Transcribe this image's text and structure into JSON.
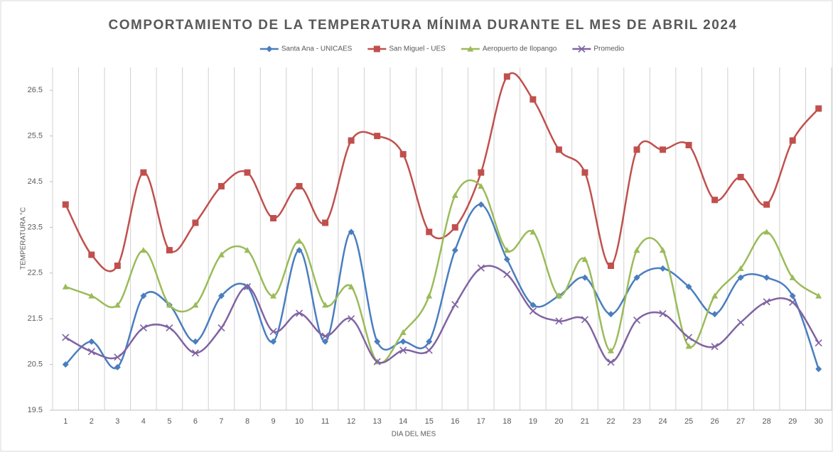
{
  "chart_data": {
    "type": "line",
    "title": "COMPORTAMIENTO DE LA TEMPERATURA MÍNIMA DURANTE EL MES DE ABRIL 2024",
    "xlabel": "DIA DEL MES",
    "ylabel": "TEMPERATURA °C",
    "categories": [
      "1",
      "2",
      "3",
      "4",
      "5",
      "6",
      "7",
      "8",
      "9",
      "10",
      "11",
      "12",
      "13",
      "14",
      "15",
      "16",
      "17",
      "18",
      "19",
      "20",
      "21",
      "22",
      "23",
      "24",
      "25",
      "26",
      "27",
      "28",
      "29",
      "30"
    ],
    "series": [
      {
        "name": "Santa Ana - UNICAES",
        "color": "#4a7ebf",
        "marker": "diamond",
        "values": [
          20.5,
          21.0,
          20.44,
          22.0,
          21.8,
          21.0,
          22.0,
          22.2,
          21.0,
          23.0,
          21.0,
          23.4,
          21.0,
          21.0,
          21.0,
          23.0,
          24.0,
          22.8,
          21.8,
          22.0,
          22.4,
          21.6,
          22.4,
          22.6,
          22.2,
          21.6,
          22.4,
          22.4,
          22.0,
          20.4
        ]
      },
      {
        "name": "San Miguel - UES",
        "color": "#c0504d",
        "marker": "square",
        "values": [
          24.0,
          22.9,
          22.66,
          24.7,
          23.0,
          23.6,
          24.4,
          24.7,
          23.7,
          24.4,
          23.6,
          25.4,
          25.5,
          25.1,
          23.4,
          23.5,
          24.7,
          26.8,
          26.3,
          25.2,
          24.7,
          22.66,
          25.2,
          25.2,
          25.3,
          24.1,
          24.6,
          24.0,
          25.4,
          26.1
        ]
      },
      {
        "name": "Aeropuerto de Ilopango",
        "color": "#9bbb59",
        "marker": "triangle",
        "values": [
          22.2,
          22.0,
          21.8,
          23.0,
          21.8,
          21.8,
          22.9,
          23.0,
          22.0,
          23.2,
          21.8,
          22.2,
          20.56,
          21.2,
          22.0,
          24.2,
          24.4,
          23.0,
          23.4,
          22.0,
          22.8,
          20.8,
          23.0,
          23.0,
          20.9,
          22.0,
          22.6,
          23.4,
          22.4,
          22.0
        ]
      },
      {
        "name": "Promedio",
        "color": "#8064a2",
        "marker": "x",
        "values": [
          21.09,
          20.78,
          20.66,
          21.3,
          21.3,
          20.75,
          21.3,
          22.2,
          21.22,
          21.62,
          21.12,
          21.5,
          20.56,
          20.81,
          20.81,
          21.81,
          22.61,
          22.47,
          21.67,
          21.45,
          21.48,
          20.55,
          21.47,
          21.61,
          21.09,
          20.89,
          21.42,
          21.87,
          21.86,
          20.97
        ]
      }
    ],
    "ylim": [
      19.5,
      27
    ],
    "yticks": [
      19.5,
      20.5,
      21.5,
      22.5,
      23.5,
      24.5,
      25.5,
      26.5
    ],
    "xgrid": true,
    "legend": "top",
    "smooth": true
  }
}
